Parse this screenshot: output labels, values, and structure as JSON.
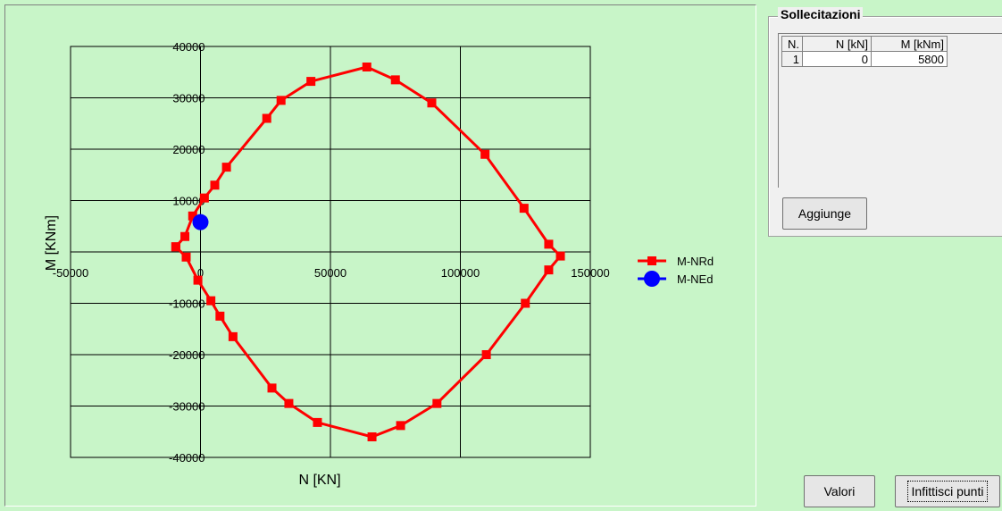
{
  "chart_data": {
    "type": "scatter",
    "xlabel": "N [KN]",
    "ylabel": "M [KNm]",
    "xlim": [
      -50000,
      150000
    ],
    "ylim": [
      -40000,
      40000
    ],
    "xticks": [
      -50000,
      0,
      50000,
      100000,
      150000
    ],
    "yticks": [
      -40000,
      -30000,
      -20000,
      -10000,
      10000,
      20000,
      30000,
      40000
    ],
    "grid": true,
    "legend_position": "right",
    "series": [
      {
        "name": "M-NRd",
        "color": "#ff0000",
        "marker": "square",
        "line": true,
        "points": [
          [
            -9500,
            1000
          ],
          [
            -6000,
            3000
          ],
          [
            -3000,
            7000
          ],
          [
            1500,
            10500
          ],
          [
            5500,
            13000
          ],
          [
            10000,
            16500
          ],
          [
            25500,
            26000
          ],
          [
            31000,
            29500
          ],
          [
            42500,
            33200
          ],
          [
            64000,
            36000
          ],
          [
            75000,
            33500
          ],
          [
            89000,
            29000
          ],
          [
            109500,
            19000
          ],
          [
            124500,
            8500
          ],
          [
            134000,
            1500
          ],
          [
            138500,
            -800
          ],
          [
            134000,
            -3500
          ],
          [
            125000,
            -10000
          ],
          [
            110000,
            -20000
          ],
          [
            91000,
            -29500
          ],
          [
            77000,
            -33800
          ],
          [
            66000,
            -36000
          ],
          [
            45000,
            -33200
          ],
          [
            34000,
            -29500
          ],
          [
            27500,
            -26500
          ],
          [
            12500,
            -16500
          ],
          [
            7500,
            -12500
          ],
          [
            4000,
            -9500
          ],
          [
            -1000,
            -5500
          ],
          [
            -5500,
            -1000
          ],
          [
            -9500,
            1000
          ]
        ]
      },
      {
        "name": "M-NEd",
        "color": "#0000ff",
        "marker": "circle",
        "line": false,
        "points": [
          [
            0,
            5800
          ]
        ]
      }
    ]
  },
  "panel": {
    "title": "Sollecitazioni",
    "table": {
      "headers": [
        "N.",
        "N [kN]",
        "M [kNm]"
      ],
      "rows": [
        [
          "1",
          "0",
          "5800"
        ]
      ]
    },
    "add_label": "Aggiunge"
  },
  "buttons": {
    "values_label": "Valori",
    "densify_label": "Infittisci punti"
  }
}
